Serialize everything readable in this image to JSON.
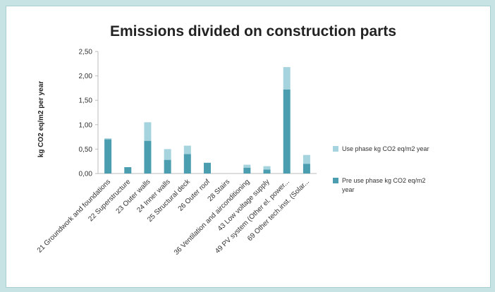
{
  "chart_data": {
    "type": "bar",
    "stacked": true,
    "title": "Emissions divided on construction parts",
    "xlabel": "",
    "ylabel": "kg CO2 eq/m2 per year",
    "ylim": [
      0,
      2.5
    ],
    "yticks": [
      "0,00",
      "0,50",
      "1,00",
      "1,50",
      "2,00",
      "2,50"
    ],
    "grid": false,
    "legend_position": "right",
    "categories": [
      "21 Groundwork and foundations",
      "22 Superstructure",
      "23 Outer walls",
      "24 Inner walls",
      "25 Structural deck",
      "26 Outer roof",
      "28 Stairs",
      "36 Ventilation and airconditioning",
      "43 Low voltage supply",
      "49 PV system (Other el. power...",
      "69 Other tech.inst. (Solar..."
    ],
    "series": [
      {
        "name": "Pre use phase kg CO2 eq/m2 year",
        "color": "#4a9eb0",
        "values": [
          0.7,
          0.13,
          0.67,
          0.28,
          0.4,
          0.22,
          0.0,
          0.12,
          0.08,
          1.72,
          0.2
        ]
      },
      {
        "name": "Use phase kg CO2 eq/m2 year",
        "color": "#a5d3de",
        "values": [
          0.02,
          0.0,
          0.38,
          0.22,
          0.17,
          0.0,
          0.0,
          0.06,
          0.07,
          0.46,
          0.18
        ]
      }
    ],
    "legend": [
      {
        "label": "Use phase kg CO2 eq/m2 year",
        "color": "#a5d3de"
      },
      {
        "label": "Pre use phase kg CO2 eq/m2",
        "label2": "year",
        "color": "#4a9eb0"
      }
    ]
  }
}
